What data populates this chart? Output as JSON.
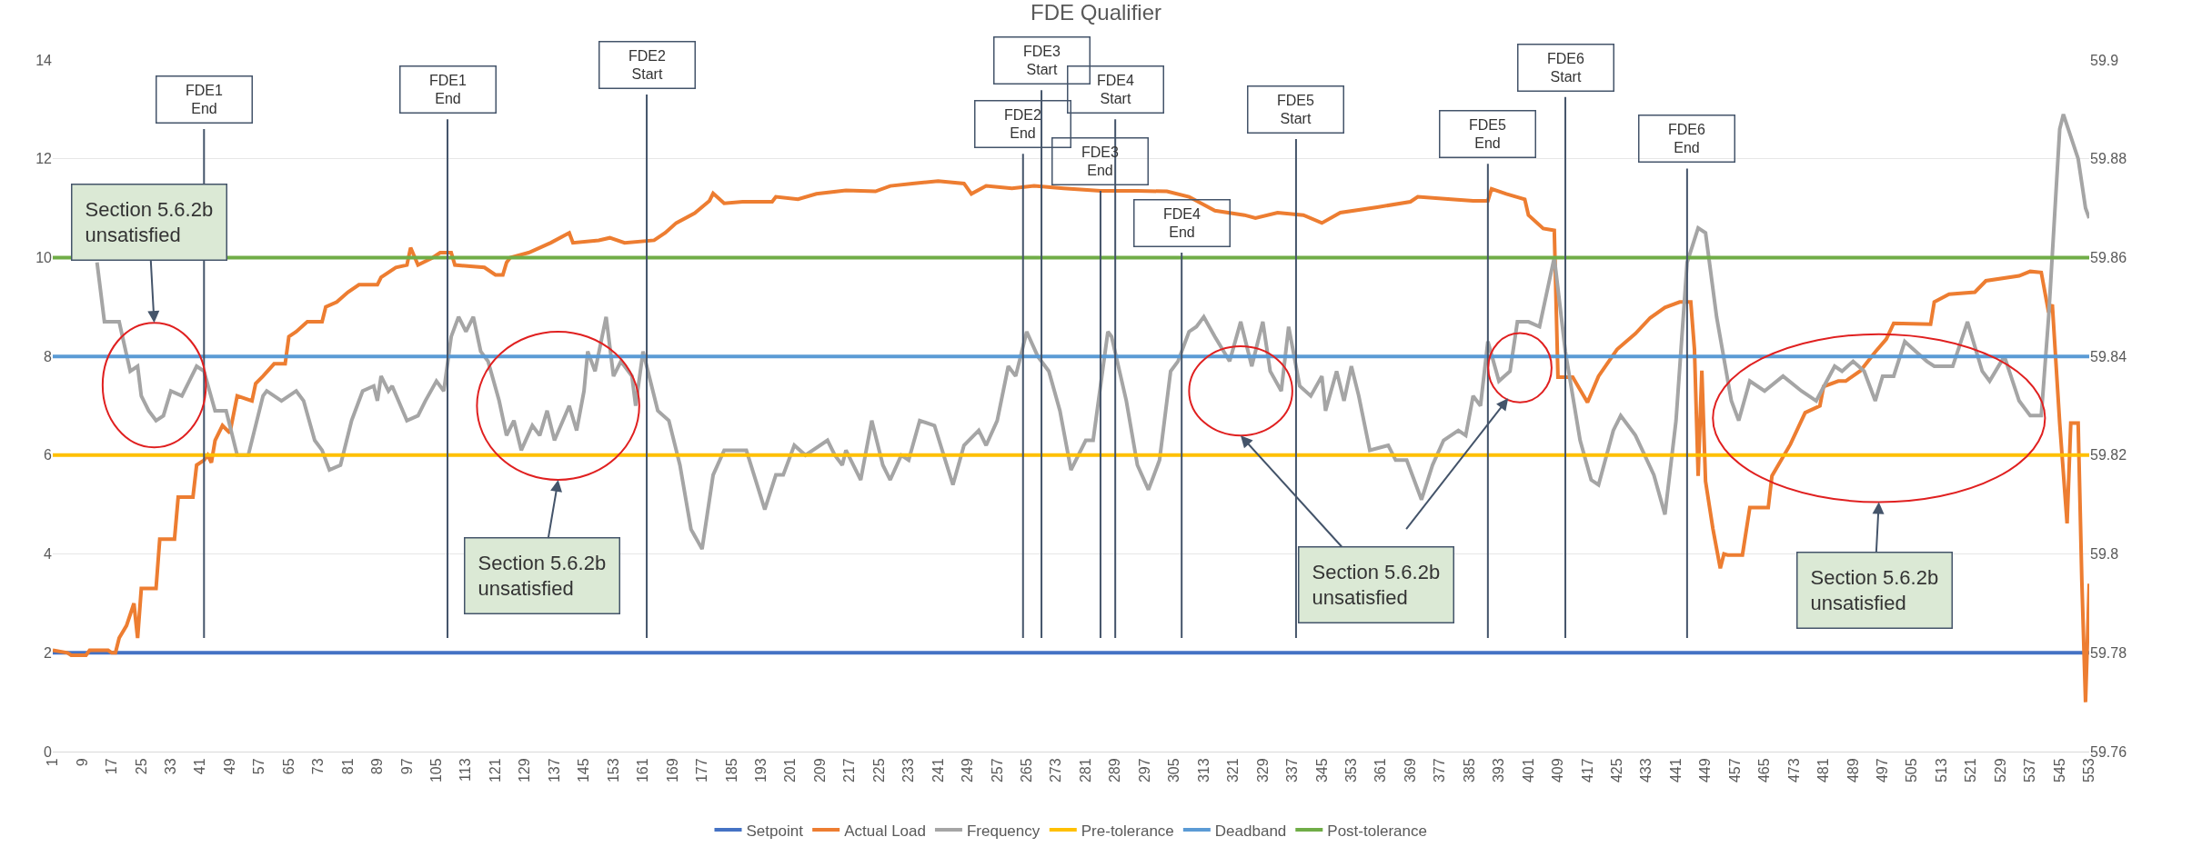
{
  "chart_data": {
    "type": "line",
    "title": "FDE Qualifier",
    "xlim": [
      1,
      553
    ],
    "xticks": [
      1,
      9,
      17,
      25,
      33,
      41,
      49,
      57,
      65,
      73,
      81,
      89,
      97,
      105,
      113,
      121,
      129,
      137,
      145,
      153,
      161,
      169,
      177,
      185,
      193,
      201,
      209,
      217,
      225,
      233,
      241,
      249,
      257,
      265,
      273,
      281,
      289,
      297,
      305,
      313,
      321,
      329,
      337,
      345,
      353,
      361,
      369,
      377,
      385,
      393,
      401,
      409,
      417,
      425,
      433,
      441,
      449,
      457,
      465,
      473,
      481,
      489,
      497,
      505,
      513,
      521,
      529,
      537,
      545,
      553
    ],
    "ylim": [
      0,
      14
    ],
    "yticks": [
      0,
      2,
      4,
      6,
      8,
      10,
      12,
      14
    ],
    "y2lim": [
      59.76,
      59.9
    ],
    "y2ticks": [
      59.76,
      59.78,
      59.8,
      59.82,
      59.84,
      59.86,
      59.88,
      59.9
    ],
    "grid": "y",
    "legend": "bottom",
    "series": [
      {
        "name": "Setpoint",
        "color": "#4472c4",
        "x": [
          1,
          553
        ],
        "values": [
          2,
          2
        ]
      },
      {
        "name": "Actual Load",
        "color": "#ed7d31",
        "x": [
          1,
          5,
          6,
          10,
          11,
          16,
          17,
          18,
          19,
          21,
          23,
          24,
          25,
          29,
          30,
          34,
          35,
          39,
          40,
          42,
          43,
          44,
          45,
          47,
          49,
          51,
          55,
          56,
          58,
          61,
          64,
          65,
          67,
          70,
          74,
          75,
          78,
          81,
          84,
          89,
          90,
          94,
          97,
          98,
          100,
          104,
          106,
          109,
          110,
          118,
          121,
          123,
          124,
          125,
          130,
          136,
          141,
          142,
          149,
          152,
          156,
          164,
          167,
          170,
          175,
          179,
          180,
          183,
          188,
          196,
          197,
          203,
          208,
          216,
          224,
          228,
          234,
          241,
          248,
          250,
          254,
          261,
          267,
          275,
          285,
          295,
          303,
          309,
          316,
          324,
          327,
          333,
          340,
          345,
          350,
          360,
          369,
          371,
          380,
          386,
          390,
          391,
          395,
          400,
          401,
          405,
          408,
          409,
          413,
          417,
          420,
          425,
          430,
          434,
          438,
          442,
          445,
          446,
          447,
          448,
          449,
          451,
          453,
          454,
          455,
          459,
          461,
          466,
          467,
          472,
          476,
          480,
          481,
          485,
          487,
          491,
          495,
          498,
          500,
          510,
          511,
          515,
          522,
          525,
          534,
          537,
          540,
          542,
          543,
          545,
          547,
          548,
          550,
          551,
          552,
          553
        ],
        "values": [
          2.05,
          2.0,
          1.95,
          1.95,
          2.05,
          2.05,
          2.0,
          2.0,
          2.3,
          2.55,
          3.0,
          2.3,
          3.3,
          3.3,
          4.3,
          4.3,
          5.15,
          5.15,
          5.8,
          5.9,
          6.0,
          5.85,
          6.3,
          6.6,
          6.45,
          7.2,
          7.1,
          7.45,
          7.6,
          7.85,
          7.85,
          8.4,
          8.5,
          8.7,
          8.7,
          9.0,
          9.1,
          9.3,
          9.45,
          9.45,
          9.6,
          9.8,
          9.85,
          10.2,
          9.85,
          10.0,
          10.1,
          10.1,
          9.85,
          9.8,
          9.65,
          9.65,
          9.9,
          10.0,
          10.1,
          10.3,
          10.5,
          10.3,
          10.35,
          10.4,
          10.3,
          10.35,
          10.5,
          10.7,
          10.9,
          11.15,
          11.3,
          11.1,
          11.13,
          11.13,
          11.23,
          11.18,
          11.29,
          11.36,
          11.34,
          11.45,
          11.5,
          11.55,
          11.5,
          11.29,
          11.45,
          11.4,
          11.45,
          11.4,
          11.35,
          11.35,
          11.34,
          11.23,
          10.95,
          10.86,
          10.8,
          10.91,
          10.86,
          10.7,
          10.91,
          11.02,
          11.13,
          11.23,
          11.18,
          11.15,
          11.15,
          11.39,
          11.29,
          11.18,
          10.86,
          10.59,
          10.55,
          7.58,
          7.58,
          7.07,
          7.6,
          8.14,
          8.46,
          8.78,
          8.99,
          9.1,
          9.1,
          8.14,
          5.58,
          7.71,
          5.47,
          4.51,
          3.71,
          4.0,
          3.98,
          3.98,
          4.94,
          4.94,
          5.58,
          6.22,
          6.86,
          7.0,
          7.39,
          7.5,
          7.5,
          7.71,
          8.09,
          8.35,
          8.67,
          8.65,
          9.1,
          9.26,
          9.3,
          9.53,
          9.63,
          9.72,
          9.7,
          8.89,
          9.05,
          6.65,
          4.62,
          6.65,
          6.65,
          3.45,
          1.0,
          3.4
        ]
      },
      {
        "name": "Frequency",
        "color": "#a5a5a5",
        "axis": "y2",
        "x": [
          13,
          15,
          19,
          22,
          24,
          25,
          27,
          29,
          31,
          33,
          36,
          38,
          40,
          42,
          45,
          48,
          51,
          54,
          58,
          59,
          63,
          67,
          69,
          72,
          74,
          76,
          79,
          82,
          85,
          88,
          89,
          90,
          92,
          93,
          97,
          100,
          102,
          105,
          107,
          109,
          111,
          113,
          115,
          117,
          119,
          122,
          124,
          126,
          128,
          131,
          133,
          135,
          137,
          141,
          143,
          145,
          146,
          148,
          151,
          153,
          155,
          158,
          159,
          161,
          165,
          168,
          171,
          174,
          177,
          180,
          183,
          189,
          194,
          197,
          199,
          202,
          205,
          211,
          213,
          215,
          216,
          220,
          223,
          226,
          228,
          231,
          233,
          236,
          240,
          245,
          248,
          252,
          254,
          257,
          260,
          262,
          265,
          268,
          271,
          274,
          277,
          281,
          283,
          287,
          288,
          292,
          295,
          298,
          301,
          304,
          306,
          309,
          311,
          313,
          316,
          320,
          323,
          326,
          329,
          331,
          334,
          336,
          339,
          342,
          345,
          346,
          349,
          351,
          353,
          355,
          358,
          363,
          365,
          368,
          372,
          375,
          378,
          382,
          384,
          386,
          388,
          390,
          393,
          396,
          398,
          401,
          404,
          408,
          411,
          415,
          418,
          420,
          424,
          426,
          430,
          435,
          438,
          441,
          444,
          447,
          449,
          452,
          456,
          458,
          461,
          465,
          470,
          475,
          479,
          484,
          486,
          489,
          492,
          495,
          497,
          500,
          503,
          506,
          509,
          511,
          516,
          520,
          524,
          526,
          530,
          534,
          537,
          540,
          542,
          545,
          546,
          550,
          552,
          553
        ],
        "values": [
          59.859,
          59.847,
          59.847,
          59.837,
          59.838,
          59.832,
          59.829,
          59.827,
          59.828,
          59.833,
          59.832,
          59.835,
          59.838,
          59.837,
          59.829,
          59.829,
          59.82,
          59.82,
          59.832,
          59.833,
          59.831,
          59.833,
          59.831,
          59.823,
          59.821,
          59.817,
          59.818,
          59.827,
          59.833,
          59.834,
          59.831,
          59.836,
          59.833,
          59.834,
          59.827,
          59.828,
          59.831,
          59.835,
          59.833,
          59.844,
          59.848,
          59.845,
          59.848,
          59.841,
          59.839,
          59.831,
          59.824,
          59.827,
          59.821,
          59.826,
          59.824,
          59.829,
          59.823,
          59.83,
          59.825,
          59.833,
          59.841,
          59.837,
          59.848,
          59.836,
          59.839,
          59.836,
          59.83,
          59.841,
          59.829,
          59.827,
          59.818,
          59.805,
          59.801,
          59.816,
          59.821,
          59.821,
          59.809,
          59.816,
          59.816,
          59.822,
          59.82,
          59.823,
          59.82,
          59.818,
          59.821,
          59.815,
          59.827,
          59.818,
          59.815,
          59.82,
          59.819,
          59.827,
          59.826,
          59.814,
          59.822,
          59.825,
          59.822,
          59.827,
          59.838,
          59.836,
          59.845,
          59.84,
          59.837,
          59.829,
          59.817,
          59.823,
          59.823,
          59.845,
          59.844,
          59.831,
          59.818,
          59.813,
          59.819,
          59.837,
          59.839,
          59.845,
          59.846,
          59.848,
          59.844,
          59.839,
          59.847,
          59.838,
          59.847,
          59.837,
          59.833,
          59.846,
          59.834,
          59.832,
          59.836,
          59.829,
          59.837,
          59.831,
          59.838,
          59.832,
          59.821,
          59.822,
          59.819,
          59.819,
          59.811,
          59.818,
          59.823,
          59.825,
          59.824,
          59.832,
          59.83,
          59.843,
          59.835,
          59.837,
          59.847,
          59.847,
          59.846,
          59.86,
          59.841,
          59.823,
          59.815,
          59.814,
          59.825,
          59.828,
          59.824,
          59.816,
          59.808,
          59.827,
          59.859,
          59.866,
          59.865,
          59.848,
          59.831,
          59.827,
          59.835,
          59.833,
          59.836,
          59.833,
          59.831,
          59.838,
          59.837,
          59.839,
          59.837,
          59.831,
          59.836,
          59.836,
          59.843,
          59.841,
          59.839,
          59.838,
          59.838,
          59.847,
          59.837,
          59.835,
          59.84,
          59.831,
          59.828,
          59.828,
          59.848,
          59.886,
          59.889,
          59.88,
          59.87,
          59.868
        ]
      },
      {
        "name": "Pre-tolerance",
        "color": "#ffc000",
        "axis": "y2",
        "x": [
          1,
          553
        ],
        "values": [
          59.82,
          59.82
        ]
      },
      {
        "name": "Deadband",
        "color": "#5b9bd5",
        "axis": "y2",
        "x": [
          1,
          553
        ],
        "values": [
          59.84,
          59.84
        ]
      },
      {
        "name": "Post-tolerance",
        "color": "#70ad47",
        "axis": "y2",
        "x": [
          1,
          553
        ],
        "values": [
          59.86,
          59.86
        ]
      }
    ],
    "ref_lines": [
      {
        "axis": "x",
        "value": 42,
        "label": "FDE1\nEnd"
      },
      {
        "axis": "x",
        "value": 108,
        "label": "FDE1\nEnd"
      },
      {
        "axis": "x",
        "value": 162,
        "label": "FDE2\nStart"
      },
      {
        "axis": "x",
        "value": 264,
        "label": "FDE2\nEnd"
      },
      {
        "axis": "x",
        "value": 269,
        "label": "FDE3\nStart"
      },
      {
        "axis": "x",
        "value": 285,
        "label": "FDE3\nEnd"
      },
      {
        "axis": "x",
        "value": 289,
        "label": "FDE4\nStart"
      },
      {
        "axis": "x",
        "value": 307,
        "label": "FDE4\nEnd"
      },
      {
        "axis": "x",
        "value": 338,
        "label": "FDE5\nStart"
      },
      {
        "axis": "x",
        "value": 390,
        "label": "FDE5\nEnd"
      },
      {
        "axis": "x",
        "value": 411,
        "label": "FDE6\nStart"
      },
      {
        "axis": "x",
        "value": 444,
        "label": "FDE6\nEnd"
      }
    ],
    "annotations": [
      "Section 5.6.2b\nunsatisfied",
      "Section 5.6.2b\nunsatisfied",
      "Section 5.6.2b\nunsatisfied",
      "Section 5.6.2b\nunsatisfied"
    ]
  }
}
